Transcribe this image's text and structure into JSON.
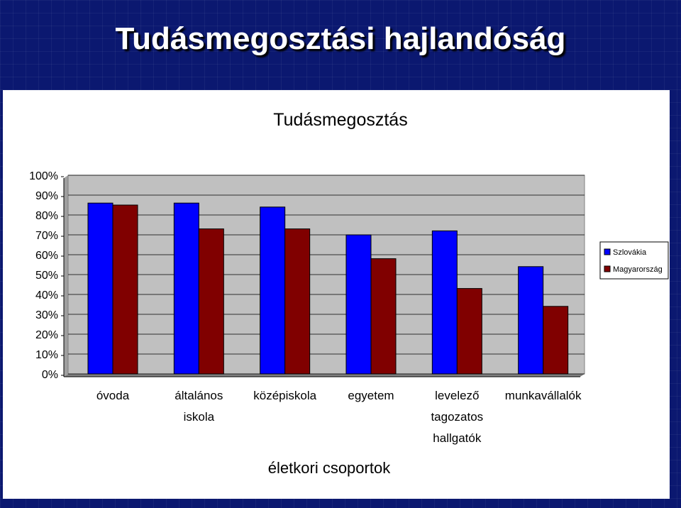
{
  "slide": {
    "title": "Tudásmegosztási hajlandóság"
  },
  "colors": {
    "background": "#0b1870",
    "series1": "#0000ff",
    "series2": "#800000",
    "plot_bg": "#c0c0c0"
  },
  "chart_data": {
    "type": "bar",
    "title": "Tudásmegosztás",
    "xlabel": "életkori csoportok",
    "ylabel": "",
    "ylim": [
      0,
      100
    ],
    "yticks": [
      "0%",
      "10%",
      "20%",
      "30%",
      "40%",
      "50%",
      "60%",
      "70%",
      "80%",
      "90%",
      "100%"
    ],
    "categories": [
      [
        "óvoda"
      ],
      [
        "általános",
        "iskola"
      ],
      [
        "középiskola"
      ],
      [
        "egyetem"
      ],
      [
        "levelező",
        "tagozatos",
        "hallgatók"
      ],
      [
        "munkavállalók"
      ]
    ],
    "series": [
      {
        "name": "Szlovákia",
        "color": "#0000ff",
        "values": [
          86,
          86,
          84,
          70,
          72,
          54
        ]
      },
      {
        "name": "Magyarország",
        "color": "#800000",
        "values": [
          85,
          73,
          73,
          58,
          43,
          34
        ]
      }
    ],
    "legend_position": "right",
    "grid": true
  }
}
